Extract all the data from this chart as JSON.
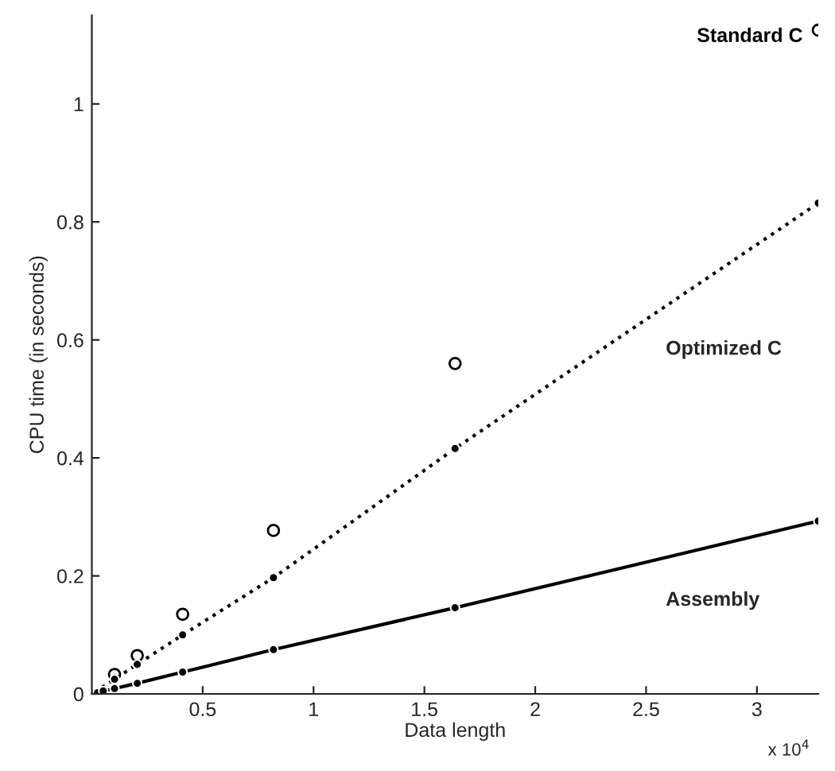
{
  "chart_data": {
    "type": "line",
    "xlabel": "Data length",
    "ylabel": "CPU time (in seconds)",
    "x": [
      0.0128,
      0.0256,
      0.0512,
      0.1024,
      0.2048,
      0.4096,
      0.8192,
      1.6384,
      3.2768
    ],
    "series": [
      {
        "name": "Standard C",
        "type": "scatter",
        "color": "#000000",
        "marker": "circle",
        "values": [
          null,
          null,
          null,
          0.033,
          0.065,
          0.135,
          0.277,
          0.56,
          1.125
        ]
      },
      {
        "name": "Optimized C",
        "color": "#000000",
        "marker": "circle",
        "line_style": "dotted",
        "values": [
          0.003,
          null,
          null,
          0.025,
          0.05,
          0.1,
          0.197,
          0.416,
          0.832
        ]
      },
      {
        "name": "Assembly",
        "color": "#000000",
        "marker": "circle",
        "line_style": "solid",
        "values": [
          0.001,
          0.002,
          0.005,
          0.009,
          0.018,
          0.037,
          0.075,
          0.146,
          0.293
        ]
      }
    ],
    "xlim": [
      0,
      3.2768
    ],
    "ylim": [
      0,
      1.15
    ],
    "xticks": [
      0.5,
      1,
      1.5,
      2,
      2.5,
      3
    ],
    "yticks": [
      0,
      0.2,
      0.4,
      0.6,
      0.8,
      1
    ],
    "annotations": [
      "x 10$^{4}$"
    ]
  }
}
